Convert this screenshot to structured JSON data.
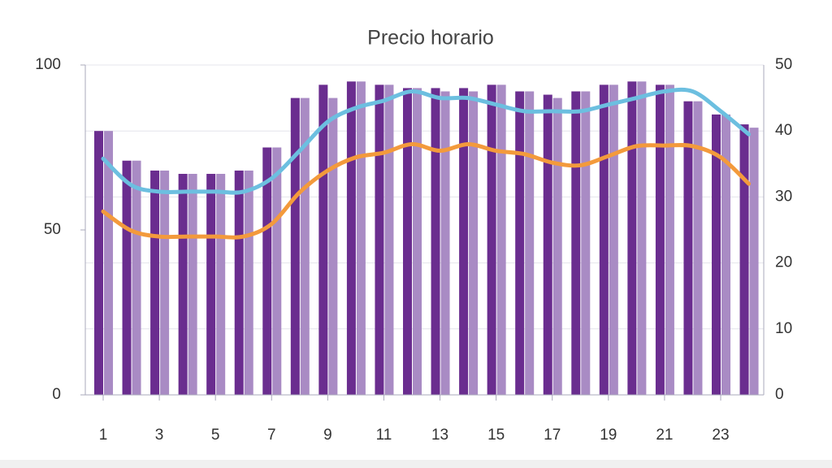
{
  "chart_data": {
    "type": "bar-line",
    "title": "Precio horario",
    "categories": [
      1,
      null,
      3,
      null,
      5,
      null,
      7,
      null,
      9,
      null,
      11,
      null,
      13,
      null,
      15,
      null,
      17,
      null,
      19,
      null,
      21,
      null,
      23,
      null
    ],
    "series": [
      {
        "type": "bar",
        "color": "#6a2d8f",
        "values": [
          80,
          71,
          68,
          67,
          67,
          68,
          75,
          90,
          94,
          95,
          94,
          93,
          93,
          93,
          94,
          92,
          91,
          92,
          94,
          95,
          94,
          89,
          85,
          82
        ]
      },
      {
        "type": "bar",
        "color": "#a98bc4",
        "values": [
          80,
          71,
          68,
          67,
          67,
          68,
          75,
          90,
          90,
          95,
          94,
          93,
          92,
          92,
          94,
          92,
          90,
          92,
          94,
          95,
          94,
          89,
          85,
          81
        ]
      },
      {
        "type": "line",
        "axis": "y2",
        "color": "#6cbfe0",
        "values": [
          35.8,
          31.8,
          30.8,
          30.8,
          30.8,
          30.8,
          32.8,
          37,
          41.4,
          43.5,
          44.6,
          46,
          45,
          45,
          44,
          43,
          43,
          43,
          44,
          45,
          46,
          46,
          43,
          39.5
        ]
      },
      {
        "type": "line",
        "axis": "y2",
        "color": "#f39a3c",
        "values": [
          27.8,
          24.9,
          24,
          24,
          24,
          24,
          25.9,
          30.7,
          34,
          36,
          36.7,
          38,
          37,
          38,
          37,
          36.5,
          35.2,
          34.8,
          36.2,
          37.7,
          37.8,
          37.7,
          36,
          32
        ]
      }
    ],
    "ylim": [
      0,
      100
    ],
    "yticks": [
      0,
      50,
      100
    ],
    "y2lim": [
      0,
      50
    ],
    "y2ticks": [
      0,
      10,
      20,
      30,
      40,
      50
    ],
    "grid": true
  }
}
